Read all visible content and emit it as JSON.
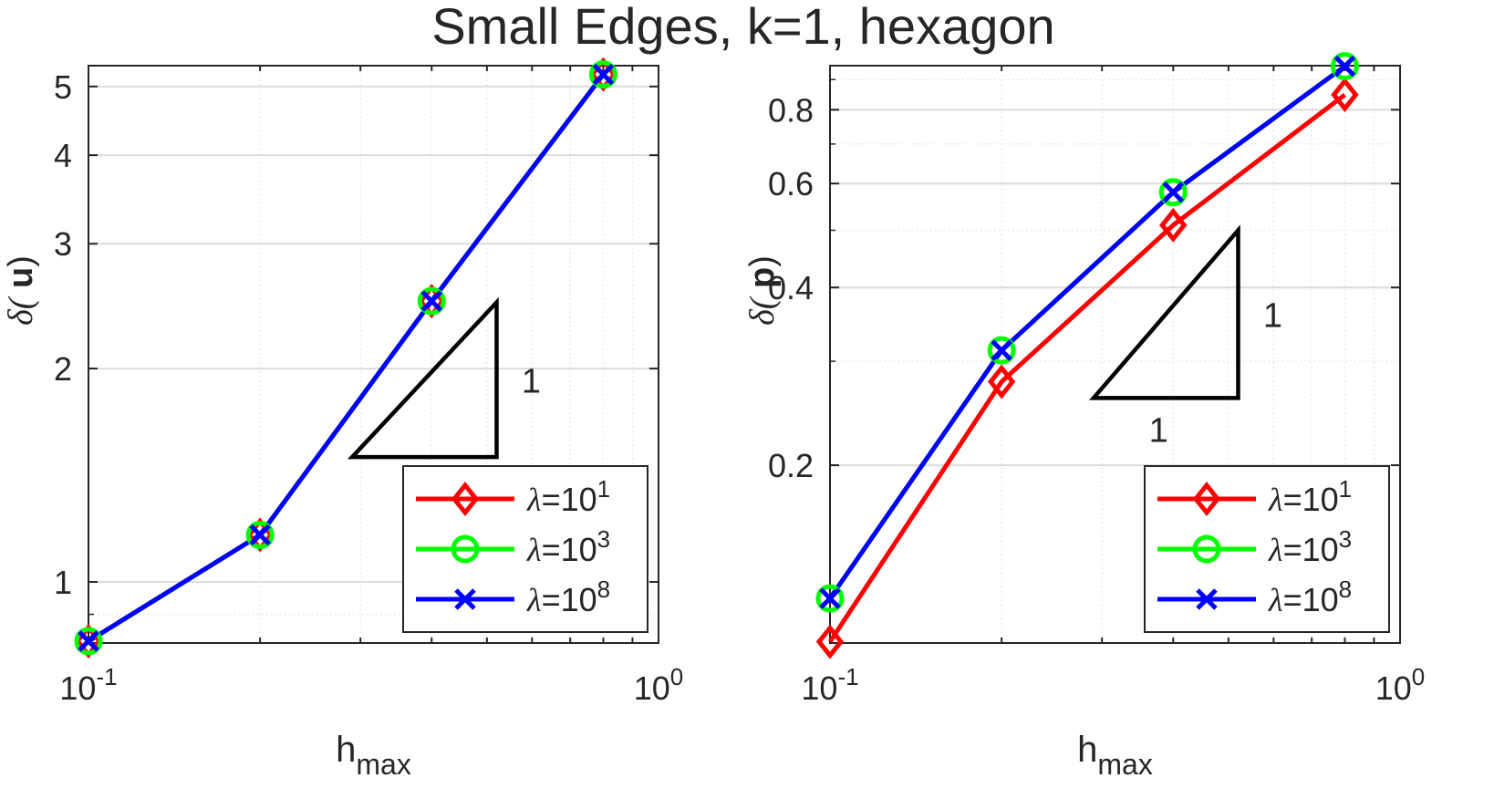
{
  "title": "Small Edges, k=1, hexagon",
  "colors": {
    "red": "#ff0000",
    "green": "#00ff00",
    "blue": "#0000ff",
    "grid_major": "#dcdcdc",
    "grid_minor": "#ececec",
    "axis": "#262626"
  },
  "chart_data": [
    {
      "type": "line",
      "panel": "left",
      "xscale": "log",
      "yscale": "log",
      "xlim": [
        0.1,
        1.0
      ],
      "ylim": [
        0.82,
        5.35
      ],
      "xlabel_main": "h",
      "xlabel_sub": "max",
      "ylabel_prefix": "δ(",
      "ylabel_var": "u",
      "ylabel_suffix": ")",
      "xticks": [
        {
          "value": 0.1,
          "base": "10",
          "exp": "-1"
        },
        {
          "value": 1.0,
          "base": "10",
          "exp": "0"
        }
      ],
      "yticks": [
        {
          "value": 1,
          "label": "1"
        },
        {
          "value": 2,
          "label": "2"
        },
        {
          "value": 3,
          "label": "3"
        },
        {
          "value": 4,
          "label": "4"
        },
        {
          "value": 5,
          "label": "5"
        }
      ],
      "grid": true,
      "legend_position": "bottom-right",
      "series": [
        {
          "label_exp": "1",
          "color": "#ff0000",
          "marker": "diamond",
          "x": [
            0.1,
            0.2,
            0.4,
            0.8
          ],
          "y": [
            0.825,
            1.165,
            2.49,
            5.2
          ]
        },
        {
          "label_exp": "3",
          "color": "#00ff00",
          "marker": "circle",
          "x": [
            0.1,
            0.2,
            0.4,
            0.8
          ],
          "y": [
            0.825,
            1.165,
            2.49,
            5.2
          ]
        },
        {
          "label_exp": "8",
          "color": "#0000ff",
          "marker": "x",
          "x": [
            0.1,
            0.2,
            0.4,
            0.8
          ],
          "y": [
            0.825,
            1.165,
            2.49,
            5.2
          ]
        }
      ],
      "slope_triangle": {
        "x": [
          0.29,
          0.52
        ],
        "y": [
          1.5,
          2.48
        ],
        "horizontal_label": "1",
        "vertical_label": "1"
      }
    },
    {
      "type": "line",
      "panel": "right",
      "xscale": "log",
      "yscale": "log",
      "xlim": [
        0.1,
        1.0
      ],
      "ylim": [
        0.1,
        0.95
      ],
      "xlabel_main": "h",
      "xlabel_sub": "max",
      "ylabel_prefix": "δ(",
      "ylabel_var": "p",
      "ylabel_suffix": ")",
      "xticks": [
        {
          "value": 0.1,
          "base": "10",
          "exp": "-1"
        },
        {
          "value": 1.0,
          "base": "10",
          "exp": "0"
        }
      ],
      "yticks": [
        {
          "value": 0.2,
          "label": "0.2"
        },
        {
          "value": 0.4,
          "label": "0.4"
        },
        {
          "value": 0.6,
          "label": "0.6"
        },
        {
          "value": 0.8,
          "label": "0.8"
        }
      ],
      "grid": true,
      "legend_position": "bottom-right",
      "series": [
        {
          "label_exp": "1",
          "color": "#ff0000",
          "marker": "diamond",
          "x": [
            0.1,
            0.2,
            0.4,
            0.8
          ],
          "y": [
            0.1005,
            0.277,
            0.51,
            0.848
          ]
        },
        {
          "label_exp": "3",
          "color": "#00ff00",
          "marker": "circle",
          "x": [
            0.1,
            0.2,
            0.4,
            0.8
          ],
          "y": [
            0.119,
            0.313,
            0.58,
            0.948
          ]
        },
        {
          "label_exp": "8",
          "color": "#0000ff",
          "marker": "x",
          "x": [
            0.1,
            0.2,
            0.4,
            0.8
          ],
          "y": [
            0.119,
            0.313,
            0.58,
            0.948
          ]
        }
      ],
      "slope_triangle": {
        "x": [
          0.29,
          0.52
        ],
        "y": [
          0.26,
          0.5
        ],
        "horizontal_label": "1",
        "vertical_label": "1"
      }
    }
  ]
}
